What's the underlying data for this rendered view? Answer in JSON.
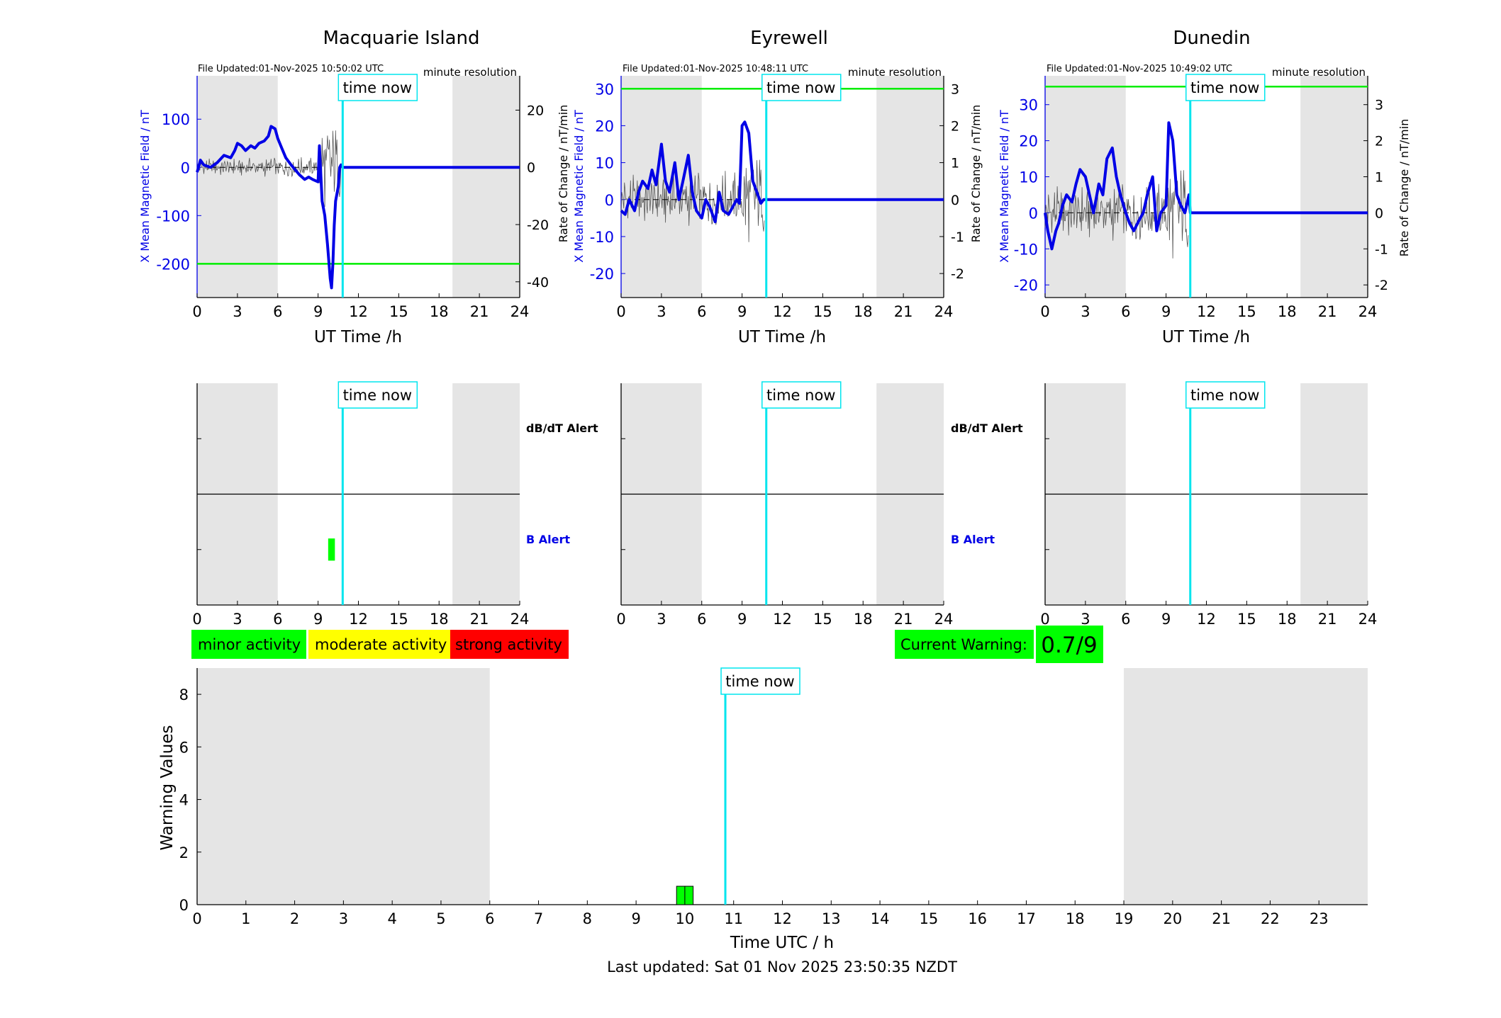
{
  "page": {
    "footer": "Last updated: Sat 01 Nov 2025 23:50:35 NZDT",
    "legend": [
      {
        "label": "minor activity",
        "color": "#00ff00"
      },
      {
        "label": "moderate activity",
        "color": "#ffff00"
      },
      {
        "label": "strong activity",
        "color": "#ff0000"
      }
    ],
    "current_warning": {
      "label": "Current Warning:",
      "value": "0.7/9",
      "color": "#00ff00"
    },
    "now_label": "time now",
    "alert_labels": {
      "dbdt": "dB/dT Alert",
      "b": "B Alert"
    },
    "colors": {
      "field": "#0000e6",
      "rate": "#555555",
      "threshold": "#00ee00",
      "now": "#00e5ee",
      "shade": "#e5e5e5"
    }
  },
  "chart_data": [
    {
      "type": "line",
      "title": "Macquarie Island",
      "file_updated": "File Updated:01-Nov-2025 10:50:02 UTC",
      "resolution": "minute resolution",
      "xlabel": "UT Time /h",
      "ylabel_left": "X Mean Magnetic Field / nT",
      "ylabel_right": "",
      "xlim": [
        0,
        24
      ],
      "xticks": [
        "0",
        "3",
        "6",
        "9",
        "12",
        "15",
        "18",
        "21",
        "24"
      ],
      "ylim_left": [
        -270,
        190
      ],
      "yticks_left": [
        "-200",
        "-100",
        "0",
        "100"
      ],
      "ylim_right": [
        -45.5,
        32
      ],
      "yticks_right": [
        "-40",
        "-20",
        "0",
        "20"
      ],
      "threshold_left": -200,
      "time_now": 10.83,
      "shaded": [
        [
          0,
          6
        ],
        [
          19,
          24
        ]
      ],
      "series": [
        {
          "x": [
            0,
            0.25,
            0.5,
            1,
            1.5,
            2,
            2.5,
            2.8,
            3,
            3.3,
            3.6,
            4,
            4.3,
            4.6,
            5,
            5.3,
            5.5,
            5.8,
            6,
            6.3,
            6.6,
            7,
            7.3,
            7.6,
            8,
            8.3,
            8.6,
            9,
            9.1,
            9.3,
            9.5,
            9.7,
            9.9,
            10,
            10.1,
            10.2,
            10.3,
            10.5,
            10.6,
            10.7,
            10.83,
            24
          ],
          "values": [
            -10,
            15,
            5,
            0,
            10,
            25,
            20,
            35,
            50,
            45,
            35,
            45,
            40,
            50,
            55,
            65,
            85,
            80,
            60,
            40,
            20,
            5,
            -5,
            -15,
            -25,
            -20,
            -25,
            -30,
            45,
            -70,
            -100,
            -160,
            -230,
            -250,
            -200,
            -120,
            -70,
            -40,
            0,
            5,
            0,
            0
          ]
        }
      ],
      "rate_series": {
        "start": 0,
        "end": 10.83,
        "step": 0.05,
        "amplitude": 2.5,
        "storm_start": 9,
        "storm_amplitude": 12
      }
    },
    {
      "type": "line",
      "title": "Eyrewell",
      "file_updated": "File Updated:01-Nov-2025 10:48:11 UTC",
      "resolution": "minute resolution",
      "xlabel": "UT Time /h",
      "ylabel_left": "X Mean Magnetic Field / nT",
      "ylabel_right": "Rate of Change / nT/min",
      "xlim": [
        0,
        24
      ],
      "xticks": [
        "0",
        "3",
        "6",
        "9",
        "12",
        "15",
        "18",
        "21",
        "24"
      ],
      "ylim_left": [
        -26.5,
        33.5
      ],
      "yticks_left": [
        "-20",
        "-10",
        "0",
        "10",
        "20",
        "30"
      ],
      "ylim_right": [
        -2.65,
        3.35
      ],
      "yticks_right": [
        "-2",
        "-1",
        "0",
        "1",
        "2",
        "3"
      ],
      "threshold_left": 30,
      "time_now": 10.8,
      "shaded": [
        [
          0,
          6
        ],
        [
          19,
          24
        ]
      ],
      "series": [
        {
          "x": [
            0,
            0.3,
            0.6,
            1,
            1.3,
            1.6,
            2,
            2.3,
            2.6,
            3,
            3.3,
            3.6,
            4,
            4.3,
            4.6,
            5,
            5.3,
            5.6,
            6,
            6.3,
            6.6,
            7,
            7.3,
            7.6,
            8,
            8.3,
            8.6,
            8.8,
            9,
            9.2,
            9.5,
            9.8,
            10.1,
            10.4,
            10.6,
            10.8,
            24
          ],
          "values": [
            -3,
            -4,
            0,
            -3,
            2,
            5,
            3,
            8,
            4,
            15,
            5,
            2,
            10,
            0,
            5,
            12,
            2,
            -3,
            -5,
            0,
            -2,
            -6,
            2,
            -3,
            -4,
            -2,
            0,
            -1,
            20,
            21,
            18,
            5,
            2,
            -1,
            0,
            0,
            0
          ]
        }
      ],
      "rate_series": {
        "start": 0,
        "end": 10.7,
        "step": 0.05,
        "amplitude": 0.55,
        "storm_start": 9,
        "storm_amplitude": 1.0
      }
    },
    {
      "type": "line",
      "title": "Dunedin",
      "file_updated": "File Updated:01-Nov-2025 10:49:02 UTC",
      "resolution": "minute resolution",
      "xlabel": "UT Time /h",
      "ylabel_left": "X Mean Magnetic Field / nT",
      "ylabel_right": "Rate of Change / nT/min",
      "xlim": [
        0,
        24
      ],
      "xticks": [
        "0",
        "3",
        "6",
        "9",
        "12",
        "15",
        "18",
        "21",
        "24"
      ],
      "ylim_left": [
        -23.5,
        38
      ],
      "yticks_left": [
        "-20",
        "-10",
        "0",
        "10",
        "20",
        "30"
      ],
      "ylim_right": [
        -2.35,
        3.8
      ],
      "yticks_right": [
        "-2",
        "-1",
        "0",
        "1",
        "2",
        "3"
      ],
      "threshold_left": 35,
      "time_now": 10.8,
      "shaded": [
        [
          0,
          6
        ],
        [
          19,
          24
        ]
      ],
      "series": [
        {
          "x": [
            0,
            0.2,
            0.5,
            0.8,
            1,
            1.3,
            1.6,
            2,
            2.3,
            2.6,
            3,
            3.3,
            3.6,
            4,
            4.3,
            4.6,
            5,
            5.3,
            5.6,
            6,
            6.3,
            6.6,
            7,
            7.3,
            7.6,
            8,
            8.3,
            8.6,
            9,
            9.2,
            9.5,
            9.8,
            10.1,
            10.4,
            10.7,
            10.8,
            24
          ],
          "values": [
            0,
            -5,
            -10,
            -5,
            -3,
            2,
            5,
            3,
            8,
            12,
            10,
            5,
            0,
            8,
            5,
            15,
            18,
            10,
            5,
            0,
            -3,
            -5,
            -2,
            0,
            5,
            10,
            -5,
            0,
            2,
            25,
            20,
            5,
            2,
            0,
            5,
            0,
            0
          ]
        }
      ],
      "rate_series": {
        "start": 0,
        "end": 10.7,
        "step": 0.05,
        "amplitude": 0.6,
        "storm_start": 9,
        "storm_amplitude": 1.1
      }
    },
    {
      "type": "bar",
      "title": "",
      "station": "Macquarie Island",
      "xlim": [
        0,
        24
      ],
      "xticks": [
        "0",
        "3",
        "6",
        "9",
        "12",
        "15",
        "18",
        "21",
        "24"
      ],
      "time_now": 10.83,
      "shaded": [
        [
          0,
          6
        ],
        [
          19,
          24
        ]
      ],
      "dbdt_alerts": [],
      "b_alerts": [
        {
          "start": 9.75,
          "end": 10.25,
          "level": "minor",
          "color": "#00ff00"
        }
      ]
    },
    {
      "type": "bar",
      "title": "",
      "station": "Eyrewell",
      "xlim": [
        0,
        24
      ],
      "xticks": [
        "0",
        "3",
        "6",
        "9",
        "12",
        "15",
        "18",
        "21",
        "24"
      ],
      "time_now": 10.8,
      "shaded": [
        [
          0,
          6
        ],
        [
          19,
          24
        ]
      ],
      "dbdt_alerts": [],
      "b_alerts": []
    },
    {
      "type": "bar",
      "title": "",
      "station": "Dunedin",
      "xlim": [
        0,
        24
      ],
      "xticks": [
        "0",
        "3",
        "6",
        "9",
        "12",
        "15",
        "18",
        "21",
        "24"
      ],
      "time_now": 10.8,
      "shaded": [
        [
          0,
          6
        ],
        [
          19,
          24
        ]
      ],
      "dbdt_alerts": [],
      "b_alerts": []
    },
    {
      "type": "bar",
      "title": "",
      "xlabel": "Time UTC / h",
      "ylabel": "Warning Values",
      "xlim": [
        0,
        24
      ],
      "ylim": [
        0,
        9
      ],
      "xticks": [
        "0",
        "1",
        "2",
        "3",
        "4",
        "5",
        "6",
        "7",
        "8",
        "9",
        "10",
        "11",
        "12",
        "13",
        "14",
        "15",
        "16",
        "17",
        "18",
        "19",
        "20",
        "21",
        "22",
        "23"
      ],
      "yticks": [
        "0",
        "2",
        "4",
        "6",
        "8"
      ],
      "time_now": 10.83,
      "shaded": [
        [
          0,
          6
        ],
        [
          19,
          24
        ]
      ],
      "bars": [
        {
          "start": 9.83,
          "end": 10.0,
          "value": 0.7,
          "color": "#00ff00"
        },
        {
          "start": 10.0,
          "end": 10.17,
          "value": 0.7,
          "color": "#00ff00"
        }
      ]
    }
  ]
}
